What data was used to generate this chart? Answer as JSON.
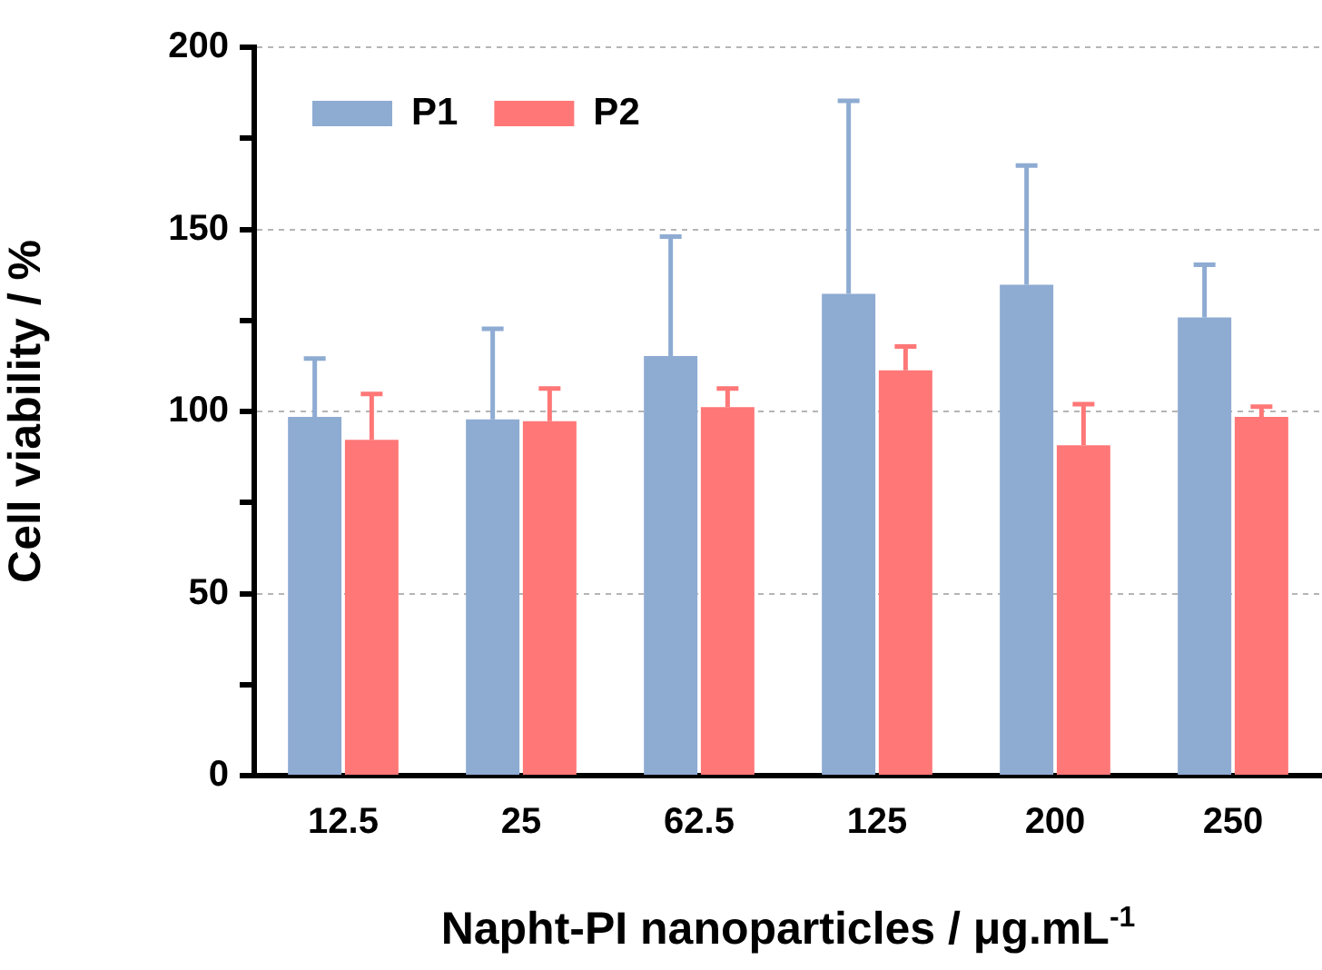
{
  "chart_data": {
    "type": "bar",
    "xlabel": "Napht-PI nanoparticles / μg.mL$^{-1}$",
    "ylabel": "Cell viability / %",
    "categories": [
      "12.5",
      "25",
      "62.5",
      "125",
      "200",
      "250"
    ],
    "series": [
      {
        "name": "P1",
        "color": "#8eabd2",
        "values": [
          98.5,
          97.8,
          115.2,
          132.3,
          134.8,
          125.8
        ],
        "errors": [
          [
            98.5,
            114.5
          ],
          [
            97.8,
            122.7
          ],
          [
            115.2,
            148
          ],
          [
            132.3,
            185.3
          ],
          [
            134.8,
            167.5
          ],
          [
            125.8,
            140.3
          ]
        ]
      },
      {
        "name": "P2",
        "color": "#ff7777",
        "values": [
          92.2,
          97.3,
          101.2,
          111.3,
          90.7,
          98.5
        ],
        "errors": [
          [
            92.2,
            104.8
          ],
          [
            97.3,
            106.3
          ],
          [
            101.2,
            106.3
          ],
          [
            111.3,
            117.8
          ],
          [
            90.7,
            102
          ],
          [
            98.5,
            101.3
          ]
        ]
      }
    ],
    "ylim": [
      0,
      200
    ],
    "yticks": [
      0,
      {
        "value": 25,
        "label": null
      },
      50,
      {
        "value": 75,
        "label": null
      },
      100,
      {
        "value": 125,
        "label": null
      },
      150,
      {
        "value": 175,
        "label": null
      },
      200
    ],
    "grid": "y",
    "legend": "top left"
  }
}
